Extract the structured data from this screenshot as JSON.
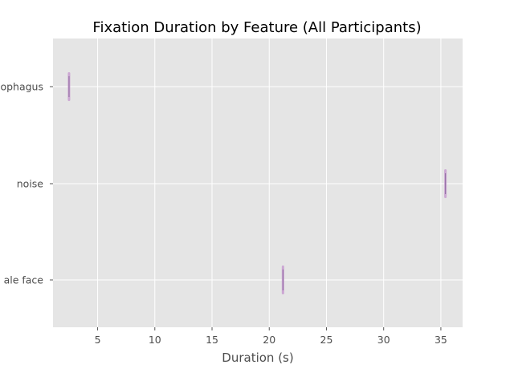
{
  "chart_data": {
    "type": "violin",
    "title": "Fixation Duration by Feature (All Participants)",
    "xlabel": "Duration (s)",
    "ylabel": "",
    "xlim": [
      1.1,
      36.9
    ],
    "xticks": [
      5,
      10,
      15,
      20,
      25,
      30,
      35
    ],
    "xtick_labels": [
      "5",
      "10",
      "15",
      "20",
      "25",
      "30",
      "35"
    ],
    "grid": true,
    "categories": [
      "ophagus",
      "noise",
      "ale face"
    ],
    "values": [
      2.5,
      35.4,
      21.2
    ],
    "colors": {
      "plot_bg": "#e5e5e5",
      "grid": "#ffffff",
      "violin": "#c9a0d0",
      "median_line": "#8e6aa0"
    }
  }
}
